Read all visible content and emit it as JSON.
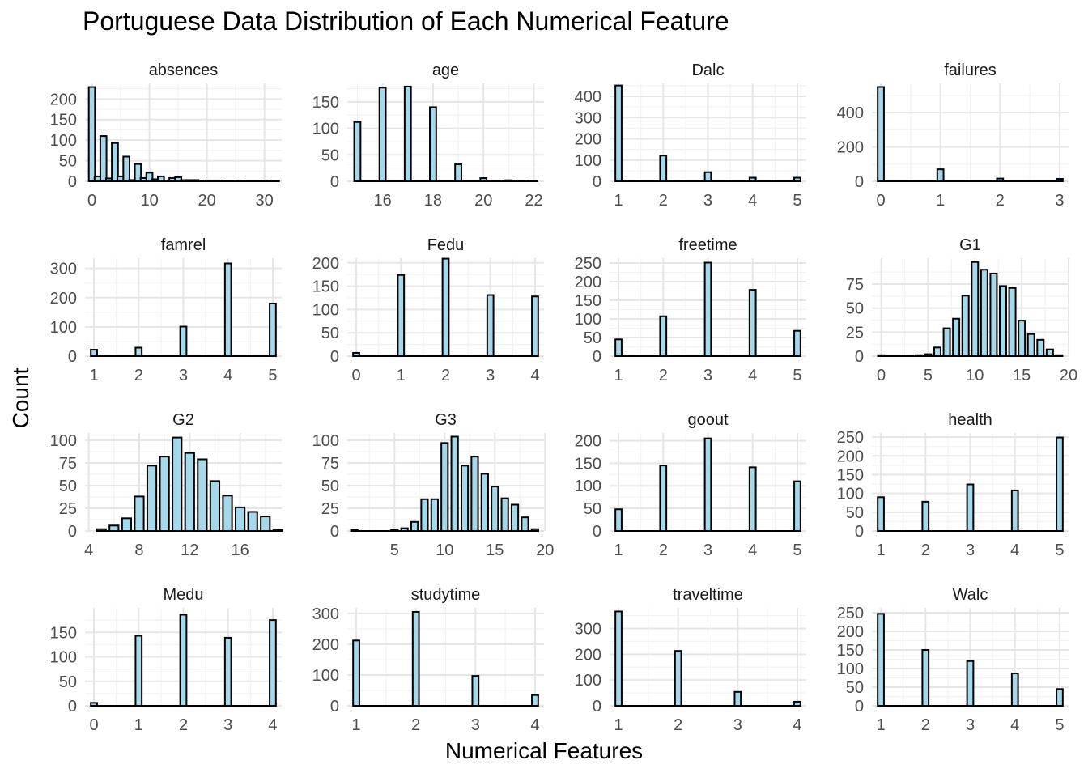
{
  "title": "Portuguese Data Distribution of Each Numerical Feature",
  "xlabel": "Numerical Features",
  "ylabel": "Count",
  "colors": {
    "bar_fill": "#a6d8ec",
    "bar_stroke": "#000000",
    "grid_major": "#e6e6e6",
    "grid_minor": "#f2f2f2"
  },
  "chart_data": [
    {
      "type": "bar",
      "title": "absences",
      "xlim": [
        -1.2,
        33
      ],
      "ylim": [
        0,
        238
      ],
      "xticks": [
        0,
        10,
        20,
        30
      ],
      "yticks": [
        0,
        50,
        100,
        150,
        200
      ],
      "bar_width": 1.08,
      "x": [
        0,
        1,
        2,
        3,
        4,
        5,
        6,
        7,
        8,
        9,
        10,
        11,
        12,
        13,
        14,
        15,
        16,
        17,
        18,
        19,
        20,
        21,
        22,
        23,
        24,
        25,
        26,
        27,
        28,
        29,
        30,
        31,
        32
      ],
      "values": [
        229,
        12,
        110,
        7,
        93,
        12,
        60,
        3,
        42,
        8,
        21,
        5,
        12,
        2,
        8,
        10,
        3,
        3,
        3,
        0,
        2,
        2,
        2,
        0,
        1,
        0,
        1,
        0,
        0,
        0,
        1,
        0,
        1
      ]
    },
    {
      "type": "bar",
      "title": "age",
      "xlim": [
        14.6,
        22.4
      ],
      "ylim": [
        0,
        185
      ],
      "xticks": [
        16,
        18,
        20,
        22
      ],
      "yticks": [
        0,
        50,
        100,
        150
      ],
      "bar_width": 0.25,
      "x": [
        15,
        16,
        17,
        18,
        19,
        20,
        21,
        22
      ],
      "values": [
        112,
        177,
        179,
        140,
        32,
        6,
        2,
        1
      ]
    },
    {
      "type": "bar",
      "title": "Dalc",
      "xlim": [
        0.8,
        5.2
      ],
      "ylim": [
        0,
        461
      ],
      "xticks": [
        1,
        2,
        3,
        4,
        5
      ],
      "yticks": [
        0,
        100,
        200,
        300,
        400
      ],
      "bar_width": 0.14,
      "x": [
        1,
        2,
        3,
        4,
        5
      ],
      "values": [
        451,
        121,
        43,
        17,
        17
      ]
    },
    {
      "type": "bar",
      "title": "failures",
      "xlim": [
        -0.15,
        3.15
      ],
      "ylim": [
        0,
        570
      ],
      "xticks": [
        0,
        1,
        2,
        3
      ],
      "yticks": [
        0,
        200,
        400
      ],
      "bar_width": 0.105,
      "x": [
        0,
        1,
        2,
        3
      ],
      "values": [
        549,
        70,
        16,
        14
      ]
    },
    {
      "type": "bar",
      "title": "famrel",
      "xlim": [
        0.8,
        5.2
      ],
      "ylim": [
        0,
        335
      ],
      "xticks": [
        1,
        2,
        3,
        4,
        5
      ],
      "yticks": [
        0,
        100,
        200,
        300
      ],
      "bar_width": 0.14,
      "x": [
        1,
        2,
        3,
        4,
        5
      ],
      "values": [
        22,
        29,
        101,
        317,
        180
      ]
    },
    {
      "type": "bar",
      "title": "Fedu",
      "xlim": [
        -0.2,
        4.2
      ],
      "ylim": [
        0,
        210
      ],
      "xticks": [
        0,
        1,
        2,
        3,
        4
      ],
      "yticks": [
        0,
        50,
        100,
        150,
        200
      ],
      "bar_width": 0.14,
      "x": [
        0,
        1,
        2,
        3,
        4
      ],
      "values": [
        7,
        174,
        209,
        131,
        128
      ]
    },
    {
      "type": "bar",
      "title": "freetime",
      "xlim": [
        0.8,
        5.2
      ],
      "ylim": [
        0,
        263
      ],
      "xticks": [
        1,
        2,
        3,
        4,
        5
      ],
      "yticks": [
        0,
        50,
        100,
        150,
        200,
        250
      ],
      "bar_width": 0.14,
      "x": [
        1,
        2,
        3,
        4,
        5
      ],
      "values": [
        45,
        107,
        251,
        178,
        68
      ]
    },
    {
      "type": "bar",
      "title": "G1",
      "xlim": [
        -1,
        20
      ],
      "ylim": [
        0,
        102
      ],
      "xticks": [
        0,
        5,
        10,
        15,
        20
      ],
      "yticks": [
        0,
        25,
        50,
        75
      ],
      "bar_width": 0.69,
      "x": [
        0,
        1,
        2,
        3,
        4,
        5,
        6,
        7,
        8,
        9,
        10,
        11,
        12,
        13,
        14,
        15,
        16,
        17,
        18,
        19
      ],
      "values": [
        1,
        0,
        0,
        0,
        1,
        2,
        9,
        29,
        39,
        63,
        98,
        90,
        86,
        73,
        71,
        37,
        23,
        17,
        7,
        1
      ]
    },
    {
      "type": "bar",
      "title": "G2",
      "xlim": [
        3.7,
        19.3
      ],
      "ylim": [
        0,
        108
      ],
      "xticks": [
        4,
        8,
        12,
        16
      ],
      "yticks": [
        0,
        25,
        50,
        75,
        100
      ],
      "bar_width": 0.72,
      "x": [
        5,
        6,
        7,
        8,
        9,
        10,
        11,
        12,
        13,
        14,
        15,
        16,
        17,
        18,
        19
      ],
      "values": [
        2,
        6,
        14,
        38,
        72,
        82,
        103,
        86,
        79,
        55,
        39,
        26,
        21,
        16,
        1
      ]
    },
    {
      "type": "bar",
      "title": "G3",
      "xlim": [
        0.3,
        19.9
      ],
      "ylim": [
        0,
        108
      ],
      "xticks": [
        5,
        10,
        15,
        20
      ],
      "yticks": [
        0,
        25,
        50,
        75,
        100
      ],
      "bar_width": 0.66,
      "x": [
        1,
        2,
        3,
        4,
        5,
        6,
        7,
        8,
        9,
        10,
        11,
        12,
        13,
        14,
        15,
        16,
        17,
        18,
        19
      ],
      "values": [
        1,
        0,
        0,
        0,
        1,
        3,
        10,
        35,
        35,
        97,
        104,
        72,
        82,
        63,
        49,
        36,
        29,
        15,
        2
      ]
    },
    {
      "type": "bar",
      "title": "goout",
      "xlim": [
        0.8,
        5.2
      ],
      "ylim": [
        0,
        217
      ],
      "xticks": [
        1,
        2,
        3,
        4,
        5
      ],
      "yticks": [
        0,
        50,
        100,
        150,
        200
      ],
      "bar_width": 0.14,
      "x": [
        1,
        2,
        3,
        4,
        5
      ],
      "values": [
        48,
        145,
        205,
        141,
        110
      ]
    },
    {
      "type": "bar",
      "title": "health",
      "xlim": [
        0.8,
        5.2
      ],
      "ylim": [
        0,
        261
      ],
      "xticks": [
        1,
        2,
        3,
        4,
        5
      ],
      "yticks": [
        0,
        50,
        100,
        150,
        200,
        250
      ],
      "bar_width": 0.14,
      "x": [
        1,
        2,
        3,
        4,
        5
      ],
      "values": [
        90,
        78,
        124,
        108,
        249
      ]
    },
    {
      "type": "bar",
      "title": "Medu",
      "xlim": [
        -0.2,
        4.2
      ],
      "ylim": [
        0,
        200
      ],
      "xticks": [
        0,
        1,
        2,
        3,
        4
      ],
      "yticks": [
        0,
        50,
        100,
        150
      ],
      "bar_width": 0.14,
      "x": [
        0,
        1,
        2,
        3,
        4
      ],
      "values": [
        6,
        143,
        186,
        139,
        175
      ]
    },
    {
      "type": "bar",
      "title": "studytime",
      "xlim": [
        0.85,
        4.15
      ],
      "ylim": [
        0,
        318
      ],
      "xticks": [
        1,
        2,
        3,
        4
      ],
      "yticks": [
        0,
        100,
        200,
        300
      ],
      "bar_width": 0.105,
      "x": [
        1,
        2,
        3,
        4
      ],
      "values": [
        212,
        305,
        97,
        35
      ]
    },
    {
      "type": "bar",
      "title": "traveltime",
      "xlim": [
        0.85,
        4.15
      ],
      "ylim": [
        0,
        380
      ],
      "xticks": [
        1,
        2,
        3,
        4
      ],
      "yticks": [
        0,
        100,
        200,
        300
      ],
      "bar_width": 0.105,
      "x": [
        1,
        2,
        3,
        4
      ],
      "values": [
        366,
        213,
        54,
        16
      ]
    },
    {
      "type": "bar",
      "title": "Walc",
      "xlim": [
        0.8,
        5.2
      ],
      "ylim": [
        0,
        263
      ],
      "xticks": [
        1,
        2,
        3,
        4,
        5
      ],
      "yticks": [
        0,
        50,
        100,
        150,
        200,
        250
      ],
      "bar_width": 0.14,
      "x": [
        1,
        2,
        3,
        4,
        5
      ],
      "values": [
        247,
        150,
        120,
        87,
        45
      ]
    }
  ]
}
